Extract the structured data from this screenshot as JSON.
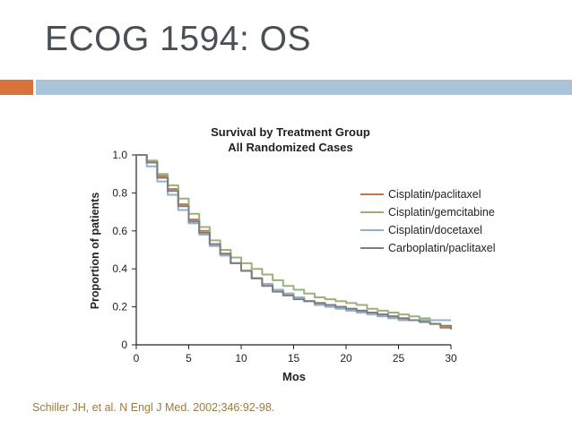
{
  "slide": {
    "title": "ECOG 1594: OS",
    "citation": "Schiller JH, et al. N Engl J Med. 2002;346:92-98."
  },
  "colors": {
    "accent": "#d8733a",
    "title_bar": "#a9c3d8",
    "series": [
      "#c0784a",
      "#9cb07a",
      "#8fb1cf",
      "#7d7d7d"
    ]
  },
  "chart_data": {
    "type": "line",
    "title": "Survival by Treatment Group",
    "subtitle": "All Randomized Cases",
    "xlabel": "Mos",
    "ylabel": "Proportion of patients",
    "xlim": [
      0,
      30
    ],
    "ylim": [
      0,
      1.0
    ],
    "xticks": [
      "0",
      "5",
      "10",
      "15",
      "20",
      "25",
      "30"
    ],
    "yticks": [
      "0",
      "0.2",
      "0.4",
      "0.6",
      "0.8",
      "1.0"
    ],
    "grid": false,
    "legend": "right",
    "series": [
      {
        "name": "Cisplatin/paclitaxel",
        "x": [
          0,
          1,
          2,
          3,
          4,
          5,
          6,
          7,
          8,
          9,
          10,
          11,
          12,
          13,
          14,
          15,
          16,
          17,
          18,
          19,
          20,
          21,
          22,
          23,
          24,
          25,
          26,
          27,
          28,
          29,
          30
        ],
        "y": [
          1.0,
          0.97,
          0.89,
          0.82,
          0.74,
          0.66,
          0.6,
          0.53,
          0.48,
          0.43,
          0.39,
          0.35,
          0.32,
          0.29,
          0.27,
          0.25,
          0.23,
          0.22,
          0.21,
          0.2,
          0.19,
          0.18,
          0.17,
          0.16,
          0.15,
          0.14,
          0.13,
          0.12,
          0.11,
          0.09,
          0.08
        ]
      },
      {
        "name": "Cisplatin/gemcitabine",
        "x": [
          0,
          1,
          2,
          3,
          4,
          5,
          6,
          7,
          8,
          9,
          10,
          11,
          12,
          13,
          14,
          15,
          16,
          17,
          18,
          19,
          20,
          21,
          22,
          23,
          24,
          25,
          26,
          27,
          28,
          29,
          30
        ],
        "y": [
          1.0,
          0.97,
          0.9,
          0.84,
          0.77,
          0.69,
          0.62,
          0.55,
          0.5,
          0.46,
          0.43,
          0.4,
          0.37,
          0.34,
          0.31,
          0.29,
          0.27,
          0.25,
          0.24,
          0.23,
          0.22,
          0.21,
          0.19,
          0.18,
          0.17,
          0.16,
          0.15,
          0.14,
          0.13,
          0.13,
          0.13
        ]
      },
      {
        "name": "Cisplatin/docetaxel",
        "x": [
          0,
          1,
          2,
          3,
          4,
          5,
          6,
          7,
          8,
          9,
          10,
          11,
          12,
          13,
          14,
          15,
          16,
          17,
          18,
          19,
          20,
          21,
          22,
          23,
          24,
          25,
          26,
          27,
          28,
          29,
          30
        ],
        "y": [
          1.0,
          0.94,
          0.86,
          0.79,
          0.71,
          0.64,
          0.58,
          0.52,
          0.47,
          0.43,
          0.39,
          0.35,
          0.32,
          0.29,
          0.27,
          0.25,
          0.23,
          0.21,
          0.2,
          0.19,
          0.18,
          0.17,
          0.16,
          0.15,
          0.14,
          0.13,
          0.13,
          0.13,
          0.13,
          0.13,
          0.13
        ]
      },
      {
        "name": "Carboplatin/paclitaxel",
        "x": [
          0,
          1,
          2,
          3,
          4,
          5,
          6,
          7,
          8,
          9,
          10,
          11,
          12,
          13,
          14,
          15,
          16,
          17,
          18,
          19,
          20,
          21,
          22,
          23,
          24,
          25,
          26,
          27,
          28,
          29,
          30
        ],
        "y": [
          1.0,
          0.96,
          0.88,
          0.81,
          0.73,
          0.65,
          0.59,
          0.53,
          0.48,
          0.43,
          0.39,
          0.35,
          0.31,
          0.28,
          0.26,
          0.24,
          0.23,
          0.22,
          0.21,
          0.2,
          0.19,
          0.18,
          0.17,
          0.16,
          0.15,
          0.14,
          0.13,
          0.12,
          0.11,
          0.1,
          0.09
        ]
      }
    ]
  }
}
